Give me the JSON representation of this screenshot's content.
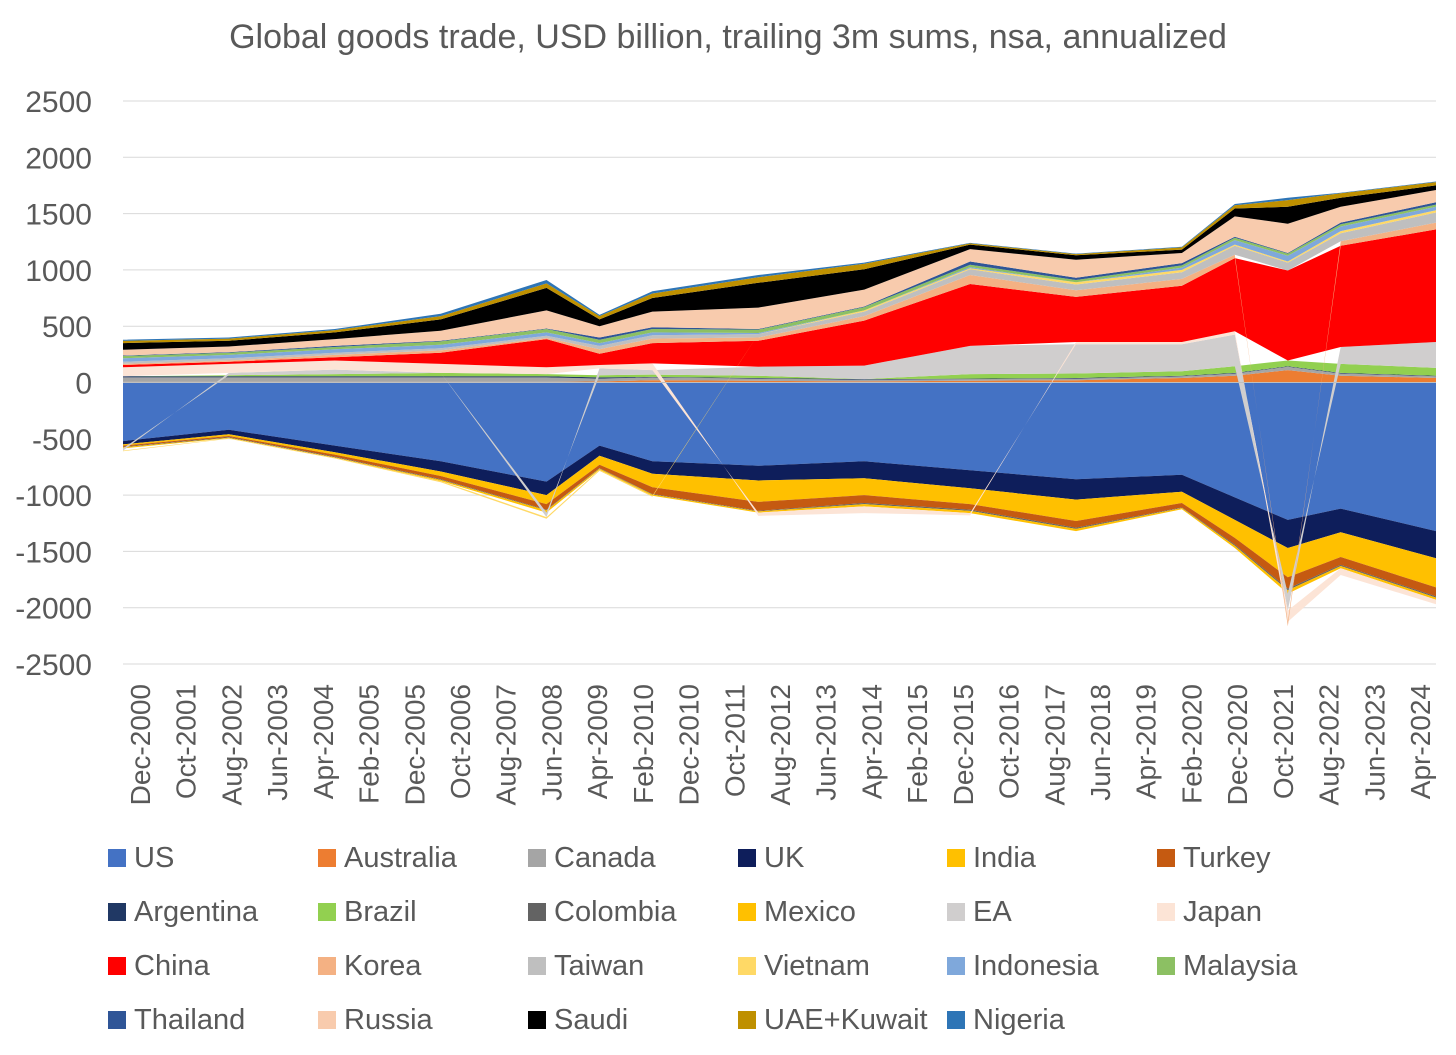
{
  "chart_data": {
    "type": "area",
    "stacked": true,
    "title": "Global goods trade, USD billion, trailing 3m sums, nsa, annualized",
    "xlabel": "",
    "ylabel": "",
    "ylim": [
      -2500,
      2500
    ],
    "yticks": [
      2500,
      2000,
      1500,
      1000,
      500,
      0,
      -500,
      -1000,
      -1500,
      -2000,
      -2500
    ],
    "grid": true,
    "legend_position": "bottom",
    "x_tick_labels": [
      "Dec-2000",
      "Oct-2001",
      "Aug-2002",
      "Jun-2003",
      "Apr-2004",
      "Feb-2005",
      "Dec-2005",
      "Oct-2006",
      "Aug-2007",
      "Jun-2008",
      "Apr-2009",
      "Feb-2010",
      "Dec-2010",
      "Oct-2011",
      "Aug-2012",
      "Jun-2013",
      "Apr-2014",
      "Feb-2015",
      "Dec-2015",
      "Oct-2016",
      "Aug-2017",
      "Jun-2018",
      "Apr-2019",
      "Feb-2020",
      "Dec-2020",
      "Oct-2021",
      "Aug-2022",
      "Jun-2023",
      "Apr-2024"
    ],
    "x": [
      "2000",
      "2002",
      "2004",
      "2006",
      "2008",
      "2009",
      "2010",
      "2012",
      "2014",
      "2016",
      "2018",
      "2020",
      "2021",
      "2022",
      "2023",
      "2024.8"
    ],
    "series": [
      {
        "name": "US",
        "color": "#4472C4",
        "values": [
          -520,
          -420,
          -560,
          -700,
          -880,
          -560,
          -700,
          -740,
          -700,
          -780,
          -860,
          -820,
          -1020,
          -1220,
          -1120,
          -1320
        ]
      },
      {
        "name": "Australia",
        "color": "#ED7D31",
        "values": [
          5,
          5,
          5,
          5,
          5,
          10,
          20,
          15,
          10,
          15,
          20,
          40,
          60,
          110,
          60,
          40
        ]
      },
      {
        "name": "Canada",
        "color": "#A5A5A5",
        "values": [
          40,
          40,
          40,
          40,
          40,
          25,
          25,
          20,
          15,
          15,
          15,
          15,
          20,
          30,
          20,
          15
        ]
      },
      {
        "name": "UK",
        "color": "#0E1E5B",
        "values": [
          -30,
          -40,
          -60,
          -90,
          -120,
          -90,
          -110,
          -130,
          -150,
          -160,
          -180,
          -150,
          -200,
          -250,
          -210,
          -240
        ]
      },
      {
        "name": "India",
        "color": "#FFC000",
        "values": [
          -10,
          -15,
          -20,
          -40,
          -80,
          -80,
          -120,
          -190,
          -150,
          -140,
          -190,
          -100,
          -160,
          -260,
          -220,
          -260
        ]
      },
      {
        "name": "Turkey",
        "color": "#C55A11",
        "values": [
          -10,
          -10,
          -20,
          -30,
          -50,
          -30,
          -60,
          -80,
          -70,
          -50,
          -60,
          -40,
          -60,
          -100,
          -70,
          -80
        ]
      },
      {
        "name": "Argentina",
        "color": "#203864",
        "values": [
          10,
          10,
          10,
          10,
          10,
          10,
          5,
          5,
          5,
          5,
          5,
          5,
          5,
          5,
          5,
          5
        ]
      },
      {
        "name": "Brazil",
        "color": "#92D050",
        "values": [
          0,
          10,
          20,
          30,
          20,
          20,
          20,
          20,
          0,
          40,
          40,
          40,
          60,
          50,
          80,
          70
        ]
      },
      {
        "name": "Colombia",
        "color": "#636363",
        "values": [
          -5,
          -5,
          -5,
          -5,
          -5,
          -5,
          -5,
          -5,
          -10,
          -10,
          -10,
          -5,
          -10,
          -15,
          -10,
          -10
        ]
      },
      {
        "name": "Mexico",
        "color": "#FFC000",
        "values": [
          -10,
          -5,
          -5,
          -10,
          -20,
          -10,
          -10,
          -10,
          -20,
          -20,
          -20,
          -10,
          -20,
          -30,
          -20,
          -20
        ]
      },
      {
        "name": "EA",
        "color": "#D0CECE",
        "values": [
          -20,
          20,
          40,
          0,
          -40,
          60,
          40,
          80,
          120,
          250,
          260,
          240,
          280,
          -150,
          150,
          230
        ]
      },
      {
        "name": "Japan",
        "color": "#FCE4D6",
        "values": [
          80,
          80,
          80,
          80,
          60,
          30,
          60,
          -30,
          -60,
          -20,
          20,
          20,
          30,
          -100,
          -60,
          -40
        ]
      },
      {
        "name": "China",
        "color": "#FF0000",
        "values": [
          20,
          20,
          30,
          100,
          250,
          100,
          180,
          230,
          400,
          550,
          400,
          500,
          650,
          800,
          900,
          1000
        ]
      },
      {
        "name": "Korea",
        "color": "#F4B183",
        "values": [
          10,
          10,
          20,
          20,
          10,
          40,
          40,
          30,
          40,
          80,
          60,
          60,
          30,
          -40,
          40,
          60
        ]
      },
      {
        "name": "Taiwan",
        "color": "#BFBFBF",
        "values": [
          20,
          20,
          20,
          20,
          20,
          30,
          30,
          30,
          40,
          50,
          50,
          60,
          80,
          70,
          70,
          90
        ]
      },
      {
        "name": "Vietnam",
        "color": "#FFD966",
        "values": [
          -5,
          -5,
          -5,
          -10,
          -15,
          -10,
          -10,
          0,
          10,
          10,
          20,
          20,
          10,
          10,
          20,
          20
        ]
      },
      {
        "name": "Indonesia",
        "color": "#7FA8DB",
        "values": [
          30,
          30,
          30,
          30,
          30,
          25,
          25,
          10,
          0,
          10,
          0,
          20,
          40,
          50,
          40,
          30
        ]
      },
      {
        "name": "Malaysia",
        "color": "#8CC063",
        "values": [
          20,
          20,
          20,
          30,
          30,
          30,
          30,
          30,
          30,
          20,
          20,
          20,
          20,
          20,
          20,
          20
        ]
      },
      {
        "name": "Thailand",
        "color": "#2F5597",
        "values": [
          5,
          5,
          10,
          5,
          5,
          20,
          15,
          5,
          5,
          30,
          20,
          20,
          10,
          5,
          15,
          20
        ]
      },
      {
        "name": "Russia",
        "color": "#F8CBAD",
        "values": [
          50,
          50,
          60,
          90,
          160,
          100,
          140,
          190,
          150,
          110,
          160,
          90,
          180,
          260,
          140,
          110
        ]
      },
      {
        "name": "Saudi",
        "color": "#000000",
        "values": [
          60,
          50,
          60,
          100,
          200,
          60,
          120,
          220,
          180,
          40,
          40,
          30,
          70,
          150,
          80,
          40
        ]
      },
      {
        "name": "UAE+Kuwait",
        "color": "#BF9000",
        "values": [
          20,
          20,
          20,
          30,
          40,
          30,
          40,
          50,
          50,
          10,
          10,
          20,
          30,
          60,
          40,
          30
        ]
      },
      {
        "name": "Nigeria",
        "color": "#2E75B6",
        "values": [
          10,
          10,
          10,
          20,
          30,
          10,
          20,
          20,
          10,
          5,
          5,
          5,
          10,
          20,
          5,
          5
        ]
      }
    ]
  }
}
